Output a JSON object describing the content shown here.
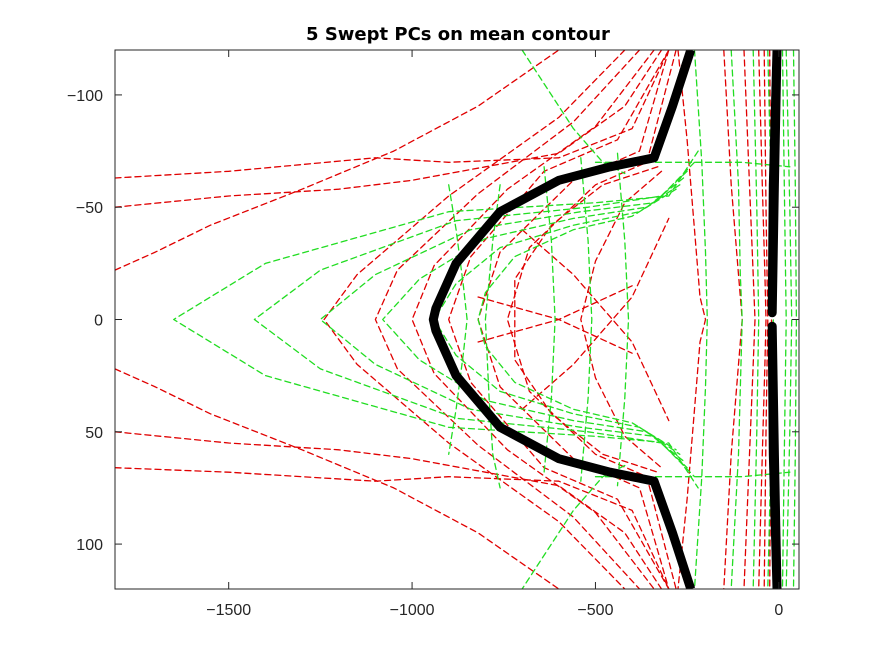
{
  "chart_data": {
    "type": "line",
    "title": "5 Swept PCs on mean contour",
    "xlabel": "",
    "ylabel": "",
    "xlim": [
      -1810,
      55
    ],
    "ylim": [
      -120,
      120
    ],
    "y_reversed": true,
    "grid": false,
    "x_ticks": [
      -1500,
      -1000,
      -500,
      0
    ],
    "x_tick_labels": [
      "−1500",
      "−1000",
      "−500",
      "0"
    ],
    "y_ticks": [
      -100,
      -50,
      0,
      50,
      100
    ],
    "y_tick_labels": [
      "−100",
      "−50",
      "0",
      "50",
      "100"
    ],
    "colors": {
      "mean": "#000000",
      "red": "#e00000",
      "green": "#22dd22",
      "axis": "#262626"
    },
    "series": [
      {
        "color": "mean",
        "style": "solid",
        "x": [
          -240,
          -290,
          -340,
          -460,
          -600,
          -760,
          -880,
          -935,
          -942,
          -935,
          -880,
          -760,
          -600,
          -460,
          -340,
          -290,
          -240
        ],
        "y": [
          -120,
          -95,
          -72,
          -68,
          -62,
          -48,
          -25,
          -5,
          0,
          5,
          25,
          48,
          62,
          68,
          72,
          95,
          120
        ]
      },
      {
        "color": "mean",
        "style": "solid",
        "x": [
          -5,
          -15,
          -18,
          -12,
          -5
        ],
        "y": [
          -120,
          -60,
          -3,
          -60,
          -120
        ]
      },
      {
        "color": "mean",
        "style": "solid",
        "x": [
          -5,
          -12,
          -18,
          -15,
          -5
        ],
        "y": [
          120,
          60,
          3,
          60,
          120
        ]
      },
      {
        "color": "red",
        "style": "dashed",
        "x": [
          -1810,
          -1500,
          -1100,
          -900,
          -600,
          -400,
          -300
        ],
        "y": [
          -63,
          -66,
          -72,
          -70,
          -72,
          -85,
          -120
        ]
      },
      {
        "color": "red",
        "style": "dashed",
        "x": [
          -1810,
          -1500,
          -1200,
          -1000,
          -800,
          -600,
          -420,
          -320
        ],
        "y": [
          -50,
          -55,
          -58,
          -62,
          -68,
          -74,
          -95,
          -120
        ]
      },
      {
        "color": "red",
        "style": "dashed",
        "x": [
          -1810,
          -1700,
          -1550,
          -1300,
          -1050,
          -820,
          -600
        ],
        "y": [
          -22,
          -30,
          -42,
          -58,
          -75,
          -95,
          -120
        ]
      },
      {
        "color": "red",
        "style": "dashed",
        "x": [
          -1810,
          -1700,
          -1550,
          -1300,
          -1050,
          -820,
          -600
        ],
        "y": [
          22,
          30,
          42,
          58,
          75,
          95,
          120
        ]
      },
      {
        "color": "red",
        "style": "dashed",
        "x": [
          -1810,
          -1500,
          -1200,
          -1000,
          -800,
          -600,
          -420,
          -320
        ],
        "y": [
          50,
          55,
          58,
          62,
          68,
          74,
          95,
          120
        ]
      },
      {
        "color": "red",
        "style": "dashed",
        "x": [
          -1810,
          -1500,
          -1100,
          -900,
          -600,
          -400,
          -300
        ],
        "y": [
          66,
          68,
          72,
          70,
          72,
          85,
          120
        ]
      },
      {
        "color": "red",
        "style": "dashed",
        "x": [
          -420,
          -600,
          -900,
          -1150,
          -1240,
          -1150,
          -900,
          -600,
          -420
        ],
        "y": [
          -120,
          -90,
          -55,
          -20,
          0,
          20,
          55,
          90,
          120
        ]
      },
      {
        "color": "red",
        "style": "dashed",
        "x": [
          -380,
          -560,
          -820,
          -1040,
          -1100,
          -1040,
          -820,
          -560,
          -380
        ],
        "y": [
          -120,
          -88,
          -56,
          -22,
          0,
          22,
          56,
          88,
          120
        ]
      },
      {
        "color": "red",
        "style": "dashed",
        "x": [
          -340,
          -500,
          -740,
          -940,
          -1000,
          -940,
          -740,
          -500,
          -340
        ],
        "y": [
          -120,
          -86,
          -58,
          -24,
          0,
          24,
          58,
          86,
          120
        ]
      },
      {
        "color": "red",
        "style": "dashed",
        "x": [
          -300,
          -440,
          -640,
          -840,
          -900,
          -840,
          -640,
          -440,
          -300
        ],
        "y": [
          -120,
          -80,
          -66,
          -28,
          0,
          28,
          66,
          80,
          120
        ]
      },
      {
        "color": "red",
        "style": "dashed",
        "x": [
          -300,
          -380,
          -560,
          -760,
          -820,
          -760,
          -560,
          -380,
          -300
        ],
        "y": [
          -120,
          -75,
          -62,
          -30,
          0,
          30,
          62,
          75,
          120
        ]
      },
      {
        "color": "red",
        "style": "dashed",
        "x": [
          -280,
          -360,
          -500,
          -680,
          -740,
          -680,
          -500,
          -360,
          -280
        ],
        "y": [
          -120,
          -70,
          -60,
          -32,
          0,
          32,
          60,
          70,
          120
        ]
      },
      {
        "color": "red",
        "style": "dashed",
        "x": [
          -330,
          -480,
          -620,
          -720,
          -720,
          -620,
          -480,
          -330
        ],
        "y": [
          -68,
          -60,
          -42,
          -18,
          18,
          42,
          60,
          68
        ]
      },
      {
        "color": "red",
        "style": "dashed",
        "x": [
          -320,
          -420,
          -500,
          -540,
          -500,
          -420,
          -320
        ],
        "y": [
          -66,
          -52,
          -26,
          0,
          26,
          52,
          66
        ]
      },
      {
        "color": "red",
        "style": "dashed",
        "x": [
          -700,
          -560,
          -400,
          -300
        ],
        "y": [
          -40,
          -20,
          10,
          45
        ]
      },
      {
        "color": "red",
        "style": "dashed",
        "x": [
          -700,
          -560,
          -400,
          -300
        ],
        "y": [
          40,
          20,
          -10,
          -45
        ]
      },
      {
        "color": "red",
        "style": "dashed",
        "x": [
          -820,
          -600,
          -400
        ],
        "y": [
          -10,
          0,
          15
        ]
      },
      {
        "color": "red",
        "style": "dashed",
        "x": [
          -820,
          -600,
          -400
        ],
        "y": [
          10,
          0,
          -15
        ]
      },
      {
        "color": "red",
        "style": "dashed",
        "x": [
          -275,
          -250,
          -230,
          -215,
          -200,
          -215,
          -230,
          -250,
          -275
        ],
        "y": [
          -120,
          -80,
          -40,
          -10,
          0,
          10,
          40,
          80,
          120
        ]
      },
      {
        "color": "red",
        "style": "dashed",
        "x": [
          -150,
          -130,
          -110,
          -100,
          -110,
          -130,
          -150
        ],
        "y": [
          -120,
          -60,
          -20,
          0,
          20,
          60,
          120
        ]
      },
      {
        "color": "red",
        "style": "dashed",
        "x": [
          -95,
          -80,
          -70,
          -65,
          -70,
          -80,
          -95
        ],
        "y": [
          -120,
          -60,
          -20,
          0,
          20,
          60,
          120
        ]
      },
      {
        "color": "red",
        "style": "dashed",
        "x": [
          -55,
          -45,
          -38,
          -35,
          -38,
          -45,
          -55
        ],
        "y": [
          -120,
          -60,
          -20,
          0,
          20,
          60,
          120
        ]
      },
      {
        "color": "red",
        "style": "dashed",
        "x": [
          -40,
          -35,
          -30,
          -35,
          -40
        ],
        "y": [
          -120,
          -50,
          0,
          50,
          120
        ]
      },
      {
        "color": "red",
        "style": "dashed",
        "x": [
          -25,
          -22,
          -20,
          -22,
          -25
        ],
        "y": [
          -120,
          -50,
          0,
          50,
          120
        ]
      },
      {
        "color": "green",
        "style": "dashed",
        "x": [
          -220,
          -300,
          -500,
          -900,
          -1400,
          -1650,
          -1400,
          -900,
          -500,
          -300,
          -220
        ],
        "y": [
          -75,
          -55,
          -52,
          -48,
          -25,
          0,
          25,
          48,
          52,
          55,
          75
        ]
      },
      {
        "color": "green",
        "style": "dashed",
        "x": [
          -230,
          -320,
          -520,
          -880,
          -1250,
          -1430,
          -1250,
          -880,
          -520,
          -320,
          -230
        ],
        "y": [
          -70,
          -55,
          -50,
          -44,
          -22,
          0,
          22,
          44,
          50,
          55,
          70
        ]
      },
      {
        "color": "green",
        "style": "dashed",
        "x": [
          -250,
          -340,
          -540,
          -840,
          -1100,
          -1250,
          -1100,
          -840,
          -540,
          -340,
          -250
        ],
        "y": [
          -66,
          -52,
          -48,
          -40,
          -20,
          0,
          20,
          40,
          48,
          52,
          66
        ]
      },
      {
        "color": "green",
        "style": "dashed",
        "x": [
          -260,
          -360,
          -560,
          -800,
          -980,
          -1080,
          -980,
          -800,
          -560,
          -360,
          -260
        ],
        "y": [
          -63,
          -50,
          -45,
          -36,
          -18,
          0,
          18,
          36,
          45,
          50,
          63
        ]
      },
      {
        "color": "green",
        "style": "dashed",
        "x": [
          -270,
          -380,
          -560,
          -760,
          -880,
          -940,
          -880,
          -760,
          -560,
          -380,
          -270
        ],
        "y": [
          -60,
          -48,
          -42,
          -32,
          -16,
          0,
          16,
          32,
          42,
          48,
          60
        ]
      },
      {
        "color": "green",
        "style": "dashed",
        "x": [
          -280,
          -400,
          -560,
          -720,
          -800,
          -820,
          -800,
          -720,
          -560,
          -400,
          -280
        ],
        "y": [
          -58,
          -46,
          -40,
          -28,
          -12,
          0,
          12,
          28,
          40,
          46,
          58
        ]
      },
      {
        "color": "green",
        "style": "dashed",
        "x": [
          -900,
          -880,
          -860,
          -850,
          -860,
          -880,
          -900
        ],
        "y": [
          -60,
          -40,
          -15,
          0,
          15,
          40,
          60
        ]
      },
      {
        "color": "green",
        "style": "dashed",
        "x": [
          -760,
          -780,
          -800,
          -790,
          -780,
          -760
        ],
        "y": [
          -60,
          -35,
          0,
          35,
          60,
          75
        ]
      },
      {
        "color": "green",
        "style": "dashed",
        "x": [
          -640,
          -620,
          -610,
          -620,
          -640
        ],
        "y": [
          -68,
          -35,
          0,
          35,
          68
        ]
      },
      {
        "color": "green",
        "style": "dashed",
        "x": [
          -540,
          -520,
          -510,
          -520,
          -540
        ],
        "y": [
          -72,
          -35,
          0,
          35,
          72
        ]
      },
      {
        "color": "green",
        "style": "dashed",
        "x": [
          -440,
          -420,
          -410,
          -420,
          -440
        ],
        "y": [
          -74,
          -35,
          0,
          35,
          74
        ]
      },
      {
        "color": "green",
        "style": "dashed",
        "x": [
          -700,
          -620,
          -560,
          -480,
          -420
        ],
        "y": [
          -120,
          -100,
          -85,
          -70,
          -65
        ]
      },
      {
        "color": "green",
        "style": "dashed",
        "x": [
          -420,
          -480,
          -560,
          -620,
          -700
        ],
        "y": [
          65,
          70,
          85,
          100,
          120
        ]
      },
      {
        "color": "green",
        "style": "dashed",
        "x": [
          -500,
          -300,
          -100,
          30
        ],
        "y": [
          -70,
          -70,
          -70,
          -68
        ]
      },
      {
        "color": "green",
        "style": "dashed",
        "x": [
          -500,
          -300,
          -100,
          30
        ],
        "y": [
          70,
          70,
          70,
          68
        ]
      },
      {
        "color": "green",
        "style": "dashed",
        "x": [
          -130,
          -110,
          -105,
          -100,
          -110,
          -130
        ],
        "y": [
          -120,
          -60,
          -20,
          0,
          60,
          120
        ]
      },
      {
        "color": "green",
        "style": "dashed",
        "x": [
          -230,
          -210,
          -200,
          -195,
          -200,
          -210,
          -230
        ],
        "y": [
          -120,
          -70,
          -30,
          0,
          30,
          70,
          120
        ]
      },
      {
        "color": "green",
        "style": "dashed",
        "x": [
          -70,
          -60,
          -55,
          -60,
          -70
        ],
        "y": [
          -120,
          -50,
          0,
          50,
          120
        ]
      },
      {
        "color": "green",
        "style": "dashed",
        "x": [
          -30,
          -20,
          -15,
          -20,
          -30
        ],
        "y": [
          -120,
          -50,
          0,
          50,
          120
        ]
      },
      {
        "color": "green",
        "style": "dashed",
        "x": [
          20,
          30,
          35,
          30,
          20
        ],
        "y": [
          -120,
          -50,
          0,
          50,
          120
        ]
      },
      {
        "color": "green",
        "style": "dashed",
        "x": [
          10,
          15,
          20,
          15,
          10
        ],
        "y": [
          -120,
          -60,
          0,
          60,
          120
        ]
      },
      {
        "color": "green",
        "style": "dashed",
        "x": [
          40,
          45,
          48,
          45,
          40
        ],
        "y": [
          -120,
          -60,
          0,
          60,
          120
        ]
      }
    ]
  }
}
